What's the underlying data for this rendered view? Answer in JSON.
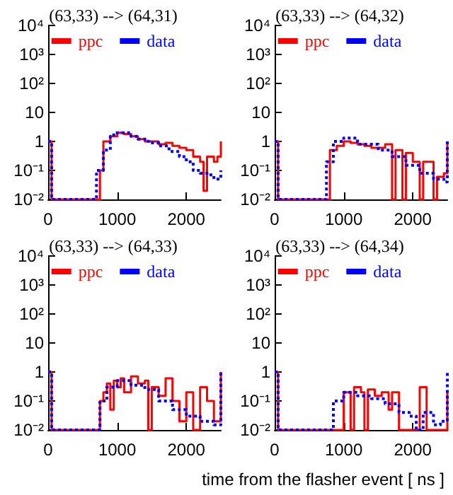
{
  "chart_data": [
    {
      "type": "step",
      "title": "(63,33) --> (64,31)",
      "legend": "top",
      "marker": "none",
      "grid": false,
      "log": "y",
      "xlim": [
        0,
        2500
      ],
      "xticks": [
        0,
        1000,
        2000
      ],
      "ylim": [
        0.01,
        10000
      ],
      "yticks": [
        {
          "value": 0.01,
          "label": "10⁻²"
        },
        {
          "value": 0.1,
          "label": "10⁻¹"
        },
        {
          "value": 1,
          "label": "1"
        },
        {
          "value": 10,
          "label": "10"
        },
        {
          "value": 100,
          "label": "10²"
        },
        {
          "value": 1000,
          "label": "10³"
        },
        {
          "value": 10000,
          "label": "10⁴"
        }
      ],
      "series": [
        {
          "name": "ppc",
          "color": "#ff0000",
          "line_style": "solid",
          "x": [
            0,
            50,
            700,
            750,
            800,
            900,
            1000,
            1100,
            1200,
            1300,
            1400,
            1500,
            1600,
            1700,
            1800,
            1900,
            2000,
            2100,
            2200,
            2250,
            2300,
            2400,
            2450,
            2500
          ],
          "values": [
            1,
            0.01,
            0.01,
            0.1,
            1,
            1.5,
            2,
            1.8,
            1.5,
            1.2,
            1,
            1,
            0.8,
            0.9,
            0.7,
            0.6,
            0.5,
            0.3,
            0.2,
            0.02,
            0.3,
            0.2,
            0.3,
            1
          ]
        },
        {
          "name": "data",
          "color": "#0000ff",
          "line_style": "dotted",
          "x": [
            0,
            50,
            650,
            700,
            800,
            900,
            950,
            1050,
            1200,
            1300,
            1450,
            1600,
            1750,
            1900,
            2000,
            2100,
            2200,
            2300,
            2400,
            2450,
            2500
          ],
          "values": [
            1,
            0.01,
            0.01,
            0.1,
            0.5,
            1.5,
            2,
            2,
            1.5,
            1.2,
            0.9,
            0.7,
            0.45,
            0.3,
            0.2,
            0.1,
            0.08,
            0.07,
            0.05,
            0.05,
            0.1
          ]
        }
      ]
    },
    {
      "type": "step",
      "title": "(63,33) --> (64,32)",
      "legend": "top",
      "marker": "none",
      "grid": false,
      "log": "y",
      "xlim": [
        0,
        2500
      ],
      "xticks": [
        0,
        1000,
        2000
      ],
      "ylim": [
        0.01,
        10000
      ],
      "yticks": [
        {
          "value": 0.01,
          "label": "10⁻²"
        },
        {
          "value": 0.1,
          "label": "10⁻¹"
        },
        {
          "value": 1,
          "label": "1"
        },
        {
          "value": 10,
          "label": "10"
        },
        {
          "value": 100,
          "label": "10²"
        },
        {
          "value": 1000,
          "label": "10³"
        },
        {
          "value": 10000,
          "label": "10⁴"
        }
      ],
      "series": [
        {
          "name": "ppc",
          "color": "#ff0000",
          "line_style": "solid",
          "x": [
            0,
            50,
            750,
            800,
            900,
            1000,
            1100,
            1200,
            1300,
            1400,
            1500,
            1600,
            1700,
            1750,
            1850,
            1900,
            2000,
            2100,
            2150,
            2300,
            2350,
            2450,
            2500
          ],
          "values": [
            1,
            0.01,
            0.01,
            0.5,
            0.7,
            1,
            0.9,
            0.8,
            0.7,
            0.6,
            0.6,
            0.8,
            0.01,
            0.5,
            0.01,
            0.4,
            0.2,
            0.01,
            0.2,
            0.01,
            0.06,
            0.08,
            1
          ]
        },
        {
          "name": "data",
          "color": "#0000ff",
          "line_style": "dotted",
          "x": [
            0,
            50,
            700,
            750,
            850,
            1000,
            1200,
            1500,
            1700,
            1900,
            2100,
            2300,
            2450,
            2500
          ],
          "values": [
            1,
            0.01,
            0.01,
            0.2,
            1,
            1.3,
            0.8,
            0.5,
            0.3,
            0.15,
            0.08,
            0.05,
            0.04,
            1
          ]
        }
      ]
    },
    {
      "type": "step",
      "title": "(63,33) --> (64,33)",
      "legend": "top",
      "marker": "none",
      "grid": false,
      "log": "y",
      "xlim": [
        0,
        2500
      ],
      "xticks": [
        0,
        1000,
        2000
      ],
      "ylim": [
        0.01,
        10000
      ],
      "yticks": [
        {
          "value": 0.01,
          "label": "10⁻²"
        },
        {
          "value": 0.1,
          "label": "10⁻¹"
        },
        {
          "value": 1,
          "label": "1"
        },
        {
          "value": 10,
          "label": "10"
        },
        {
          "value": 100,
          "label": "10²"
        },
        {
          "value": 1000,
          "label": "10³"
        },
        {
          "value": 10000,
          "label": "10⁴"
        }
      ],
      "series": [
        {
          "name": "ppc",
          "color": "#ff0000",
          "line_style": "solid",
          "x": [
            0,
            50,
            750,
            800,
            850,
            900,
            950,
            1000,
            1050,
            1100,
            1200,
            1300,
            1400,
            1450,
            1500,
            1600,
            1700,
            1800,
            1900,
            2000,
            2100,
            2200,
            2300,
            2400,
            2500
          ],
          "values": [
            1,
            0.01,
            0.1,
            0.2,
            0.4,
            0.05,
            0.5,
            0.3,
            0.6,
            0.2,
            0.7,
            0.4,
            0.5,
            0.01,
            0.3,
            0.15,
            0.6,
            0.1,
            0.02,
            0.2,
            0.01,
            0.3,
            0.1,
            0.02,
            1
          ]
        },
        {
          "name": "data",
          "color": "#0000ff",
          "line_style": "dotted",
          "x": [
            0,
            50,
            700,
            750,
            850,
            1000,
            1200,
            1400,
            1600,
            1800,
            2000,
            2200,
            2400,
            2500
          ],
          "values": [
            1,
            0.01,
            0.01,
            0.1,
            0.3,
            0.5,
            0.35,
            0.25,
            0.1,
            0.05,
            0.03,
            0.02,
            0.015,
            1
          ]
        }
      ]
    },
    {
      "type": "step",
      "title": "(63,33) --> (64,34)",
      "xlabel": "time from the flasher event [ ns ]",
      "legend": "top",
      "marker": "none",
      "grid": false,
      "log": "y",
      "xlim": [
        0,
        2500
      ],
      "xticks": [
        0,
        1000,
        2000
      ],
      "ylim": [
        0.01,
        10000
      ],
      "yticks": [
        {
          "value": 0.01,
          "label": "10⁻²"
        },
        {
          "value": 0.1,
          "label": "10⁻¹"
        },
        {
          "value": 1,
          "label": "1"
        },
        {
          "value": 10,
          "label": "10"
        },
        {
          "value": 100,
          "label": "10²"
        },
        {
          "value": 1000,
          "label": "10³"
        },
        {
          "value": 10000,
          "label": "10⁴"
        }
      ],
      "series": [
        {
          "name": "ppc",
          "color": "#ff0000",
          "line_style": "solid",
          "x": [
            0,
            50,
            950,
            1000,
            1100,
            1150,
            1250,
            1300,
            1350,
            1450,
            1550,
            1650,
            1700,
            1800,
            2050,
            2100,
            2200,
            2450,
            2500
          ],
          "values": [
            1,
            0.01,
            0.01,
            0.2,
            0.01,
            0.3,
            0.2,
            0.01,
            0.25,
            0.15,
            0.2,
            0.05,
            0.2,
            0.01,
            0.01,
            0.3,
            0.01,
            0.01,
            0.2
          ]
        },
        {
          "name": "data",
          "color": "#0000ff",
          "line_style": "dotted",
          "x": [
            0,
            50,
            750,
            850,
            1000,
            1200,
            1400,
            1600,
            1800,
            1950,
            2050,
            2150,
            2300,
            2400,
            2500
          ],
          "values": [
            1,
            0.01,
            0.01,
            0.1,
            0.2,
            0.15,
            0.12,
            0.08,
            0.04,
            0.03,
            0.01,
            0.04,
            0.015,
            0.02,
            1
          ]
        }
      ]
    }
  ]
}
